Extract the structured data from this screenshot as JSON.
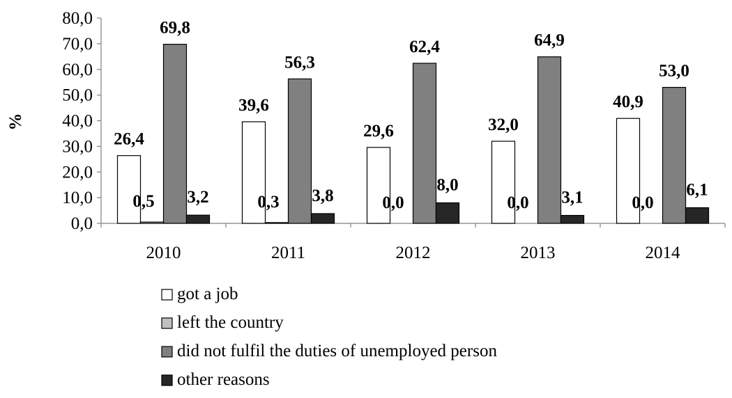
{
  "chart_data": {
    "type": "bar",
    "title": "",
    "xlabel": "",
    "ylabel": "%",
    "ylim": [
      0,
      80
    ],
    "yticks": [
      "0,0",
      "10,0",
      "20,0",
      "30,0",
      "40,0",
      "50,0",
      "60,0",
      "70,0",
      "80,0"
    ],
    "grid": false,
    "legend_position": "bottom",
    "categories": [
      "2010",
      "2011",
      "2012",
      "2013",
      "2014"
    ],
    "series": [
      {
        "name": "got a job",
        "color": "#ffffff",
        "values": [
          26.4,
          39.6,
          29.6,
          32.0,
          40.9
        ],
        "labels": [
          "26,4",
          "39,6",
          "29,6",
          "32,0",
          "40,9"
        ]
      },
      {
        "name": "left the country",
        "color": "#c0c0c0",
        "values": [
          0.5,
          0.3,
          0.0,
          0.0,
          0.0
        ],
        "labels": [
          "0,5",
          "0,3",
          "0,0",
          "0,0",
          "0,0"
        ]
      },
      {
        "name": "did not fulfil the duties of unemployed person",
        "color": "#808080",
        "values": [
          69.8,
          56.3,
          62.4,
          64.9,
          53.0
        ],
        "labels": [
          "69,8",
          "56,3",
          "62,4",
          "64,9",
          "53,0"
        ]
      },
      {
        "name": "other reasons",
        "color": "#262626",
        "values": [
          3.2,
          3.8,
          8.0,
          3.1,
          6.1
        ],
        "labels": [
          "3,2",
          "3,8",
          "8,0",
          "3,1",
          "6,1"
        ]
      }
    ]
  }
}
